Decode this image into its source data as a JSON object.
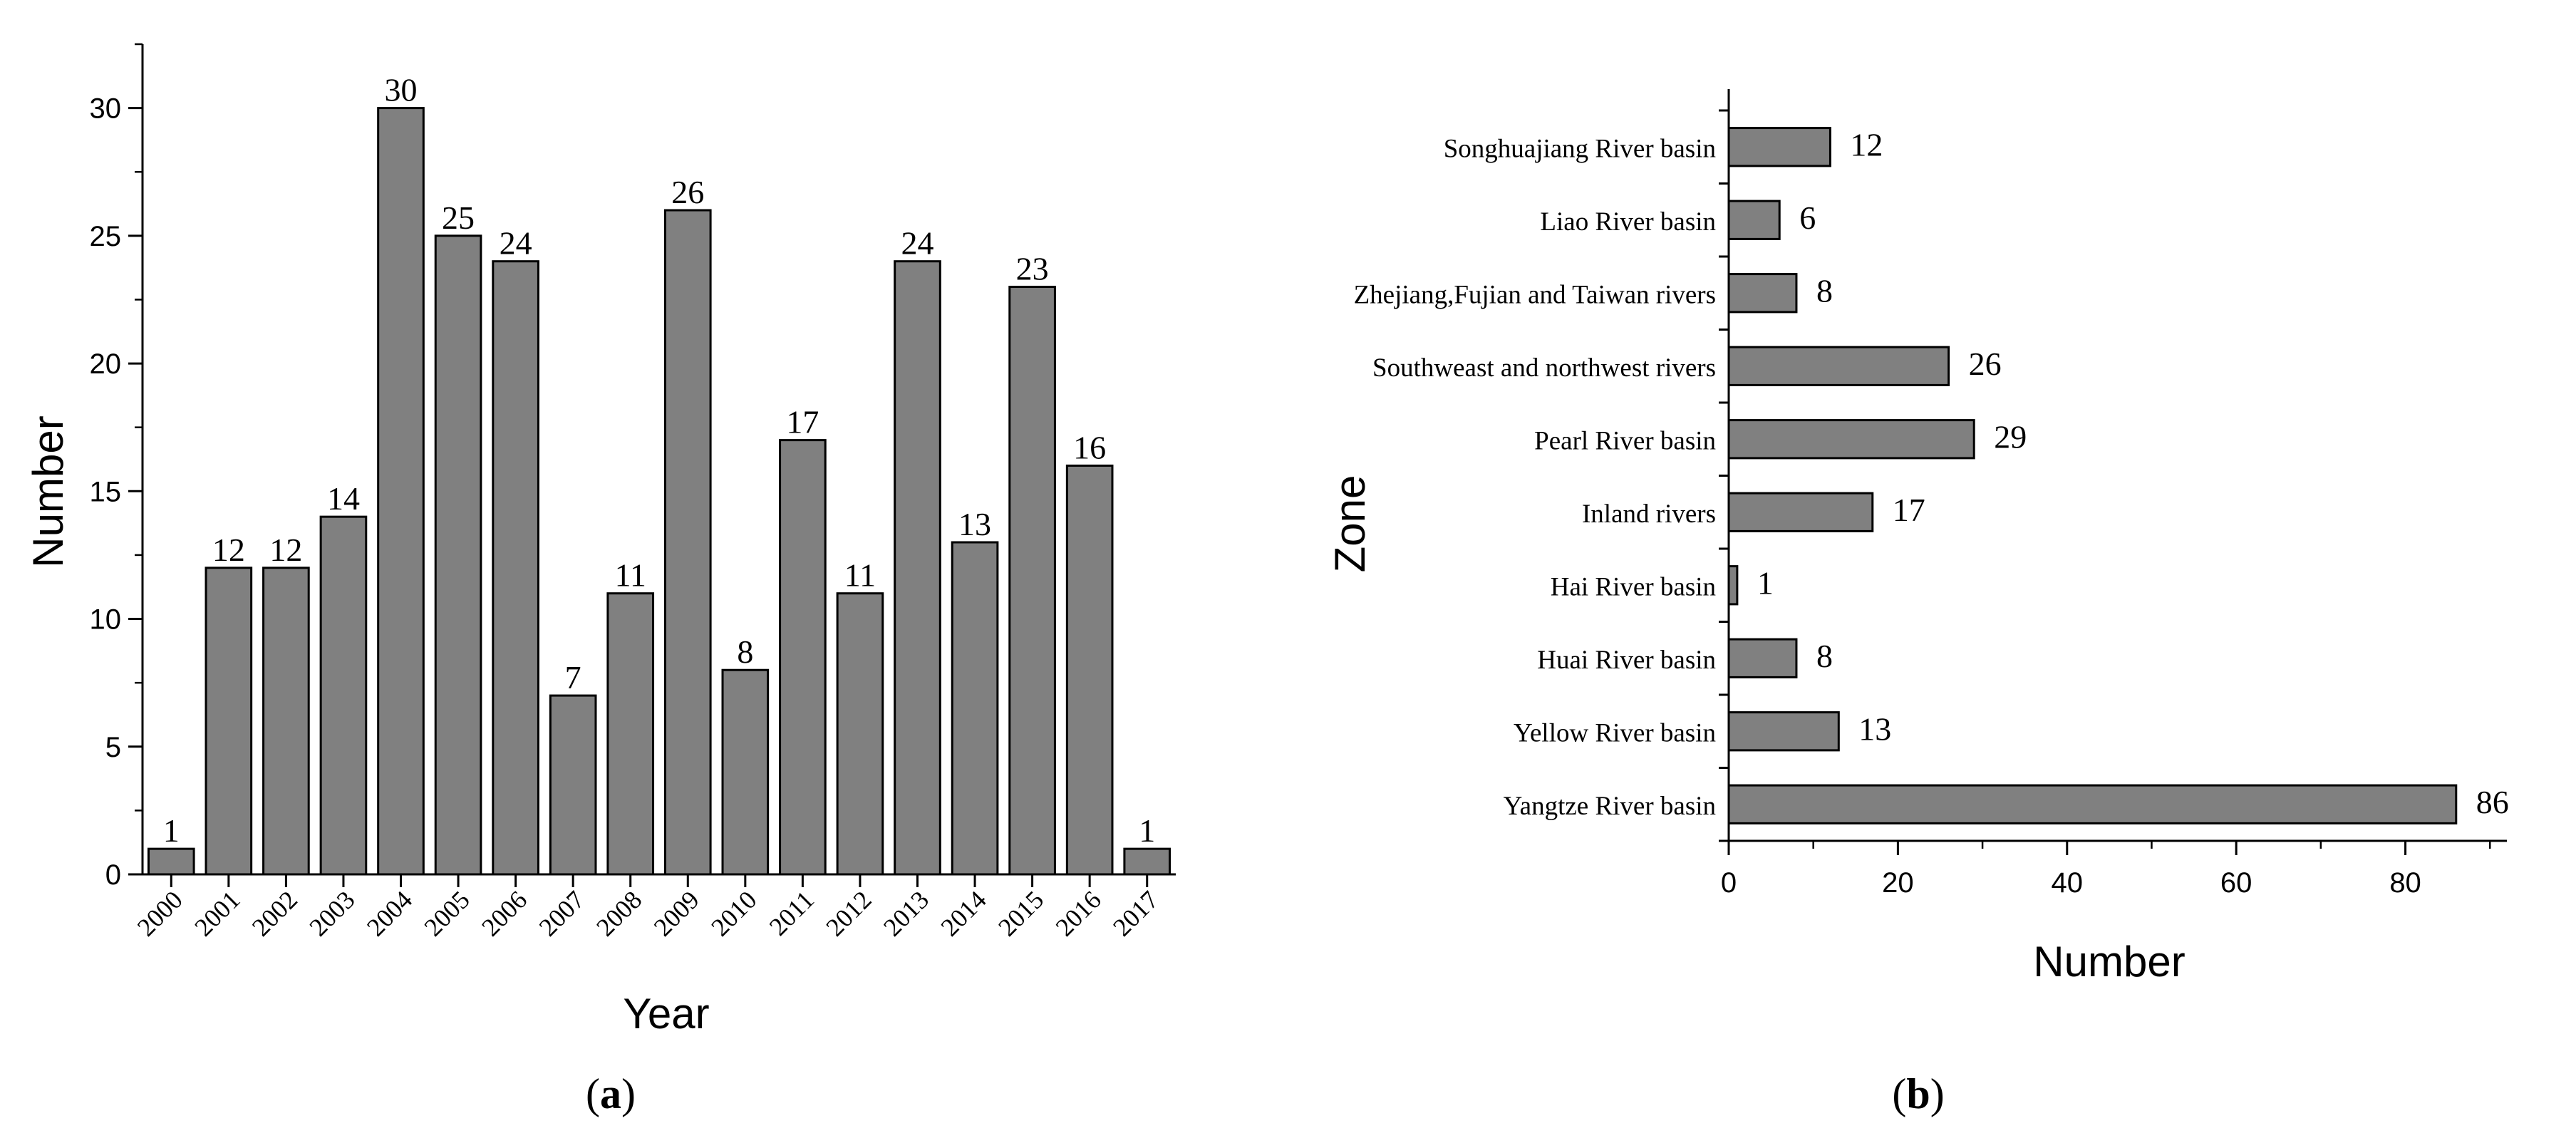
{
  "chart_data": [
    {
      "id": "a",
      "type": "bar",
      "panel_label_prefix": "(",
      "panel_label_letter": "a",
      "panel_label_suffix": ")",
      "xlabel": "Year",
      "ylabel": "Number",
      "categories": [
        "2000",
        "2001",
        "2002",
        "2003",
        "2004",
        "2005",
        "2006",
        "2007",
        "2008",
        "2009",
        "2010",
        "2011",
        "2012",
        "2013",
        "2014",
        "2015",
        "2016",
        "2017"
      ],
      "values": [
        1,
        12,
        12,
        14,
        30,
        25,
        24,
        7,
        11,
        26,
        8,
        17,
        11,
        24,
        13,
        23,
        16,
        1
      ],
      "ylim": [
        0,
        32.5
      ],
      "yticks": [
        "0",
        "5",
        "10",
        "15",
        "20",
        "25",
        "30"
      ],
      "grid": false,
      "bar_color": "#808080"
    },
    {
      "id": "b",
      "type": "bar",
      "orientation": "horizontal",
      "panel_label_prefix": "(",
      "panel_label_letter": "b",
      "panel_label_suffix": ")",
      "xlabel": "Number",
      "ylabel": "Zone",
      "categories": [
        "Songhuajiang River basin",
        "Liao River basin",
        "Zhejiang,Fujian and Taiwan rivers",
        "Southweast and northwest rivers",
        "Pearl River basin",
        "Inland rivers",
        "Hai River basin",
        "Huai River basin",
        "Yellow River basin",
        "Yangtze River basin"
      ],
      "values": [
        12,
        6,
        8,
        26,
        29,
        17,
        1,
        8,
        13,
        86
      ],
      "xlim": [
        0,
        92
      ],
      "xticks": [
        "0",
        "20",
        "40",
        "60",
        "80"
      ],
      "grid": false,
      "bar_color": "#808080"
    }
  ]
}
